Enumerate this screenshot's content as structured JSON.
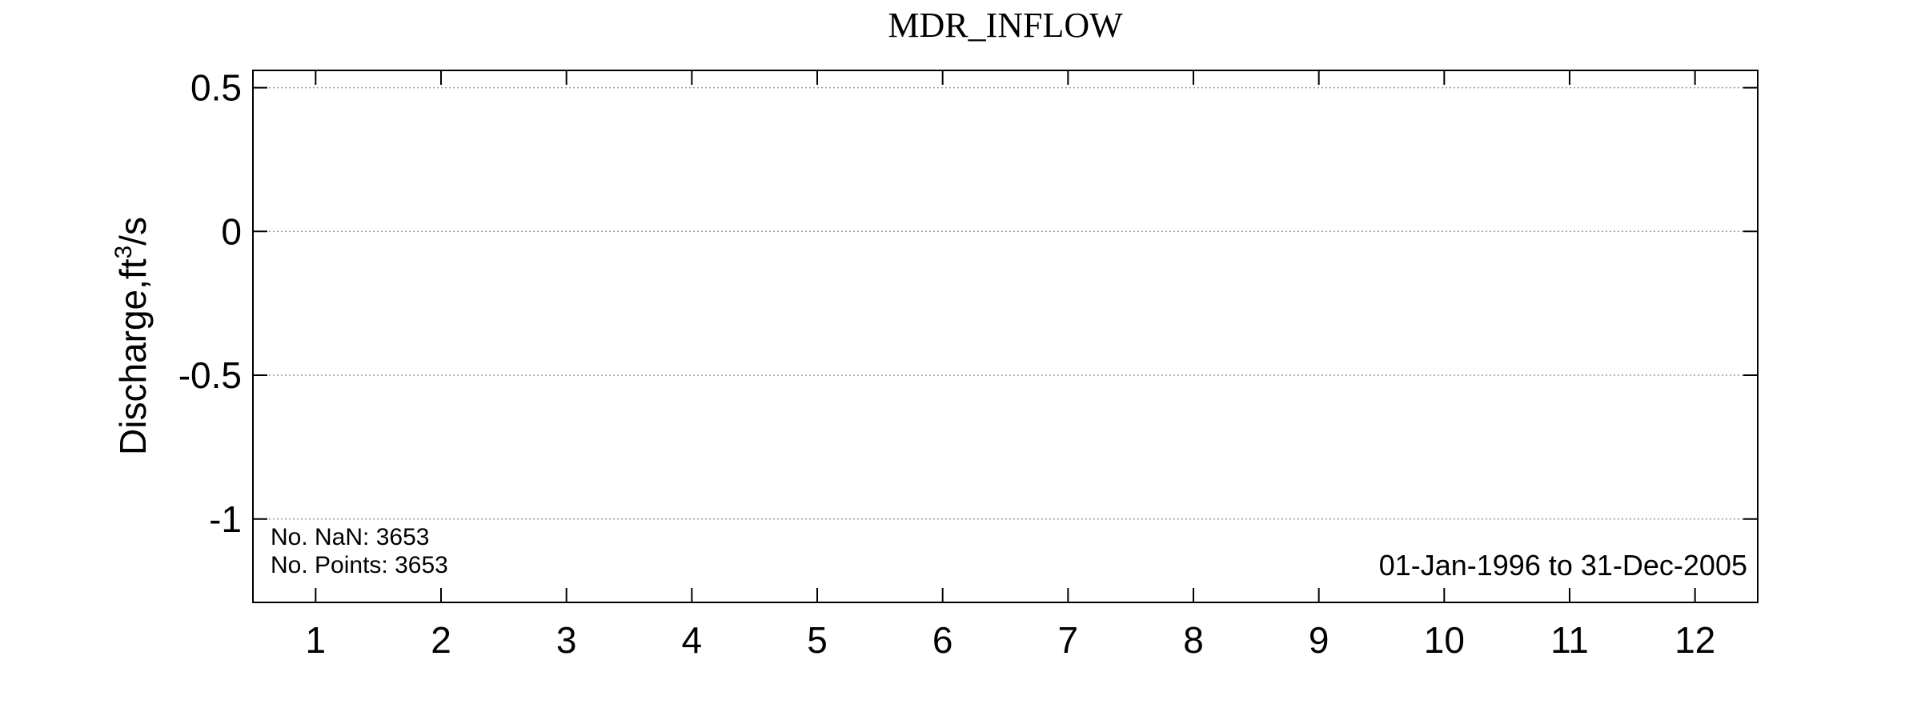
{
  "chart_data": {
    "type": "line",
    "title": "MDR_INFLOW",
    "ylabel": {
      "main": "Discharge,ft",
      "superscript": "3",
      "suffix": "/s"
    },
    "xlabel": "",
    "x_ticks": [
      1,
      2,
      3,
      4,
      5,
      6,
      7,
      8,
      9,
      10,
      11,
      12
    ],
    "x_tick_labels": [
      "1",
      "2",
      "3",
      "4",
      "5",
      "6",
      "7",
      "8",
      "9",
      "10",
      "11",
      "12"
    ],
    "xlim": [
      0.5,
      12.5
    ],
    "y_ticks": [
      0.5,
      0,
      -0.5,
      -1
    ],
    "y_tick_labels": [
      "0.5",
      "0",
      "-0.5",
      "-1"
    ],
    "ylim": [
      -1.29,
      0.56
    ],
    "grid": {
      "horizontal": true,
      "vertical": false,
      "style": "dotted"
    },
    "series": [],
    "annotations": {
      "nan_count": "No. NaN: 3653",
      "point_count": "No. Points: 3653",
      "date_range": "01-Jan-1996 to 31-Dec-2005"
    },
    "colors": {
      "axes": "#000000",
      "grid": "#9a9a9a",
      "background": "#ffffff"
    }
  }
}
